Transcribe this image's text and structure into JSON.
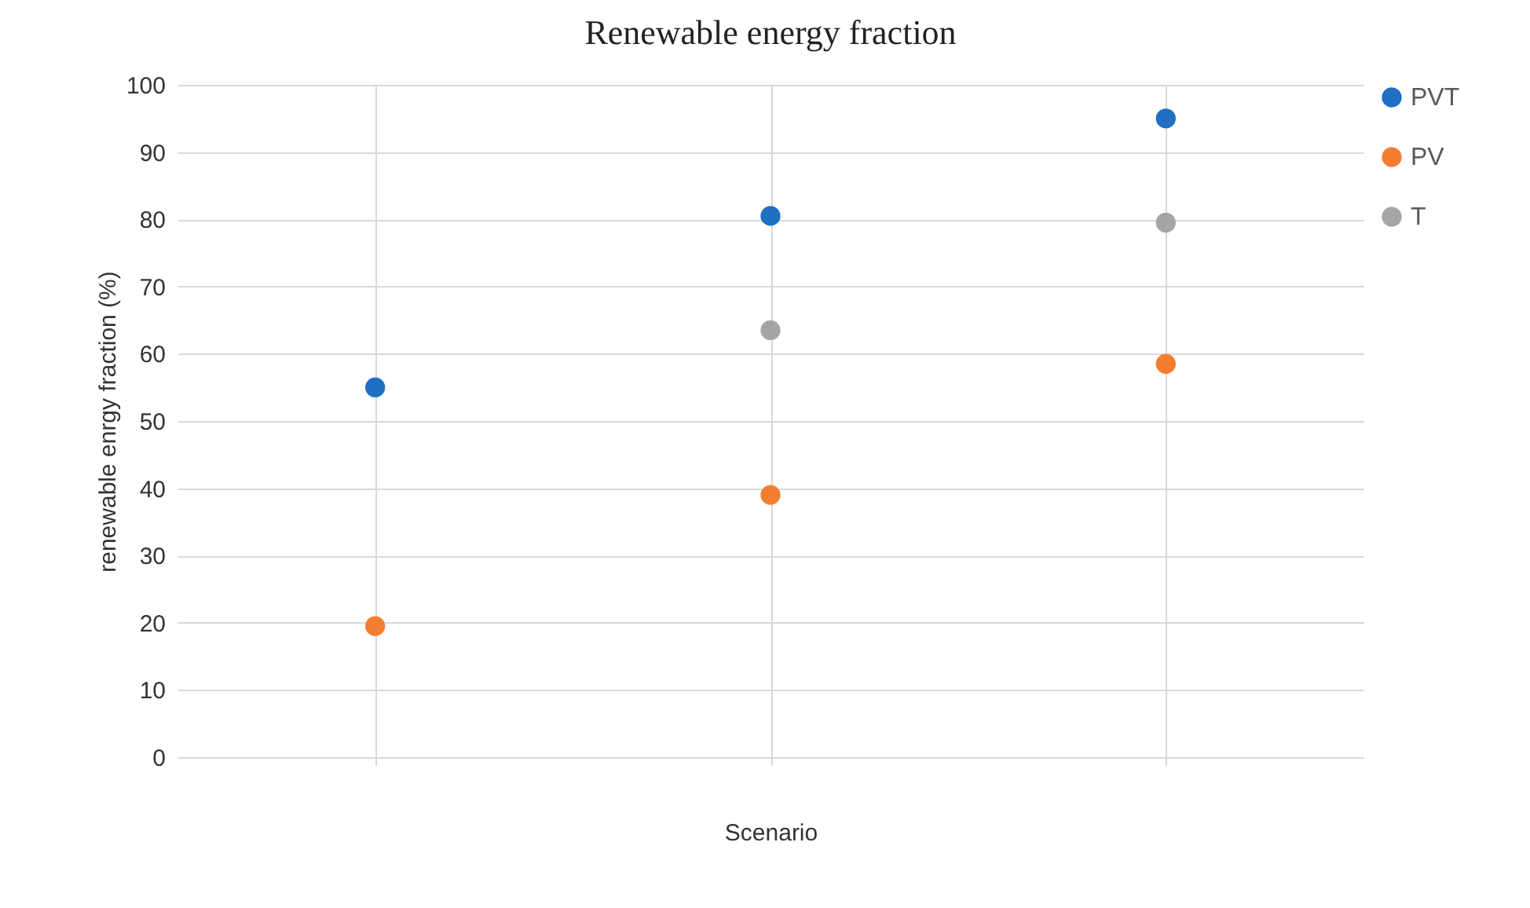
{
  "chart_data": {
    "type": "scatter",
    "title": "Renewable energy fraction",
    "xlabel": "Scenario",
    "ylabel": "renewable enrgy fraction (%)",
    "categories": [
      null,
      null,
      null
    ],
    "series": [
      {
        "name": "PVT",
        "color": "#1f6fc5",
        "values": [
          55,
          80.5,
          95
        ]
      },
      {
        "name": "PV",
        "color": "#f47d30",
        "values": [
          19.5,
          39,
          58.5
        ]
      },
      {
        "name": "T",
        "color": "#a5a5a5",
        "values": [
          null,
          63.5,
          79.5
        ]
      }
    ],
    "ylim": [
      0,
      100
    ],
    "yticks": [
      0,
      10,
      20,
      30,
      40,
      50,
      60,
      70,
      80,
      90,
      100
    ],
    "grid": true,
    "legend": "right",
    "marker": "circle",
    "tick_labels": "y"
  }
}
